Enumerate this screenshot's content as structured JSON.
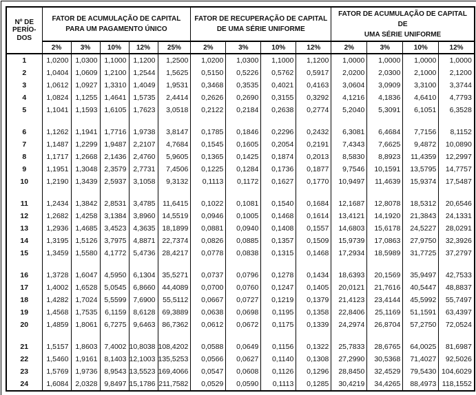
{
  "colors": {
    "border": "#000000",
    "text": "#111111",
    "background": "#ffffff"
  },
  "document": {
    "period_header": "Nº DE\nPERÍO-\nDOS",
    "band_size": 5,
    "groups": [
      {
        "title": "FATOR DE ACUMULAÇÃO DE CAPITAL\nPARA UM PAGAMENTO ÚNICO",
        "rates": [
          "2%",
          "3%",
          "10%",
          "12%",
          "25%"
        ]
      },
      {
        "title": "FATOR DE RECUPERAÇÃO DE CAPITAL\nDE UMA SÉRIE UNIFORME",
        "rates": [
          "2%",
          "3%",
          "10%",
          "12%"
        ]
      },
      {
        "title": "FATOR DE ACUMULAÇÃO DE CAPITAL DE\nUMA SÉRIE UNIFORME",
        "rates": [
          "2%",
          "3%",
          "10%",
          "12%"
        ]
      }
    ],
    "rows": [
      {
        "period": "1",
        "values": [
          [
            "1,0200",
            "1,0300",
            "1,1000",
            "1,1200",
            "1,2500"
          ],
          [
            "1,0200",
            "1,0300",
            "1,1000",
            "1,1200"
          ],
          [
            "1,0000",
            "1,0000",
            "1,0000",
            "1,0000"
          ]
        ]
      },
      {
        "period": "2",
        "values": [
          [
            "1,0404",
            "1,0609",
            "1,2100",
            "1,2544",
            "1,5625"
          ],
          [
            "0,5150",
            "0,5226",
            "0,5762",
            "0,5917"
          ],
          [
            "2,0200",
            "2,0300",
            "2,1000",
            "2,1200"
          ]
        ]
      },
      {
        "period": "3",
        "values": [
          [
            "1,0612",
            "1,0927",
            "1,3310",
            "1,4049",
            "1,9531"
          ],
          [
            "0,3468",
            "0,3535",
            "0,4021",
            "0,4163"
          ],
          [
            "3,0604",
            "3,0909",
            "3,3100",
            "3,3744"
          ]
        ]
      },
      {
        "period": "4",
        "values": [
          [
            "1,0824",
            "1,1255",
            "1,4641",
            "1,5735",
            "2,4414"
          ],
          [
            "0,2626",
            "0,2690",
            "0,3155",
            "0,3292"
          ],
          [
            "4,1216",
            "4,1836",
            "4,6410",
            "4,7793"
          ]
        ]
      },
      {
        "period": "5",
        "values": [
          [
            "1,1041",
            "1,1593",
            "1,6105",
            "1,7623",
            "3,0518"
          ],
          [
            "0,2122",
            "0,2184",
            "0,2638",
            "0,2774"
          ],
          [
            "5,2040",
            "5,3091",
            "6,1051",
            "6,3528"
          ]
        ]
      },
      {
        "period": "6",
        "values": [
          [
            "1,1262",
            "1,1941",
            "1,7716",
            "1,9738",
            "3,8147"
          ],
          [
            "0,1785",
            "0,1846",
            "0,2296",
            "0,2432"
          ],
          [
            "6,3081",
            "6,4684",
            "7,7156",
            "8,1152"
          ]
        ]
      },
      {
        "period": "7",
        "values": [
          [
            "1,1487",
            "1,2299",
            "1,9487",
            "2,2107",
            "4,7684"
          ],
          [
            "0,1545",
            "0,1605",
            "0,2054",
            "0,2191"
          ],
          [
            "7,4343",
            "7,6625",
            "9,4872",
            "10,0890"
          ]
        ]
      },
      {
        "period": "8",
        "values": [
          [
            "1,1717",
            "1,2668",
            "2,1436",
            "2,4760",
            "5,9605"
          ],
          [
            "0,1365",
            "0,1425",
            "0,1874",
            "0,2013"
          ],
          [
            "8,5830",
            "8,8923",
            "11,4359",
            "12,2997"
          ]
        ]
      },
      {
        "period": "9",
        "values": [
          [
            "1,1951",
            "1,3048",
            "2,3579",
            "2,7731",
            "7,4506"
          ],
          [
            "0,1225",
            "0,1284",
            "0,1736",
            "0,1877"
          ],
          [
            "9,7546",
            "10,1591",
            "13,5795",
            "14,7757"
          ]
        ]
      },
      {
        "period": "10",
        "values": [
          [
            "1,2190",
            "1,3439",
            "2,5937",
            "3,1058",
            "9,3132"
          ],
          [
            "0,1113",
            "0,1172",
            "0,1627",
            "0,1770"
          ],
          [
            "10,9497",
            "11,4639",
            "15,9374",
            "17,5487"
          ]
        ]
      },
      {
        "period": "11",
        "values": [
          [
            "1,2434",
            "1,3842",
            "2,8531",
            "3,4785",
            "11,6415"
          ],
          [
            "0,1022",
            "0,1081",
            "0,1540",
            "0,1684"
          ],
          [
            "12,1687",
            "12,8078",
            "18,5312",
            "20,6546"
          ]
        ]
      },
      {
        "period": "12",
        "values": [
          [
            "1,2682",
            "1,4258",
            "3,1384",
            "3,8960",
            "14,5519"
          ],
          [
            "0,0946",
            "0,1005",
            "0,1468",
            "0,1614"
          ],
          [
            "13,4121",
            "14,1920",
            "21,3843",
            "24,1331"
          ]
        ]
      },
      {
        "period": "13",
        "values": [
          [
            "1,2936",
            "1,4685",
            "3,4523",
            "4,3635",
            "18,1899"
          ],
          [
            "0,0881",
            "0,0940",
            "0,1408",
            "0,1557"
          ],
          [
            "14,6803",
            "15,6178",
            "24,5227",
            "28,0291"
          ]
        ]
      },
      {
        "period": "14",
        "values": [
          [
            "1,3195",
            "1,5126",
            "3,7975",
            "4,8871",
            "22,7374"
          ],
          [
            "0,0826",
            "0,0885",
            "0,1357",
            "0,1509"
          ],
          [
            "15,9739",
            "17,0863",
            "27,9750",
            "32,3926"
          ]
        ]
      },
      {
        "period": "15",
        "values": [
          [
            "1,3459",
            "1,5580",
            "4,1772",
            "5,4736",
            "28,4217"
          ],
          [
            "0,0778",
            "0,0838",
            "0,1315",
            "0,1468"
          ],
          [
            "17,2934",
            "18,5989",
            "31,7725",
            "37,2797"
          ]
        ]
      },
      {
        "period": "16",
        "values": [
          [
            "1,3728",
            "1,6047",
            "4,5950",
            "6,1304",
            "35,5271"
          ],
          [
            "0,0737",
            "0,0796",
            "0,1278",
            "0,1434"
          ],
          [
            "18,6393",
            "20,1569",
            "35,9497",
            "42,7533"
          ]
        ]
      },
      {
        "period": "17",
        "values": [
          [
            "1,4002",
            "1,6528",
            "5,0545",
            "6,8660",
            "44,4089"
          ],
          [
            "0,0700",
            "0,0760",
            "0,1247",
            "0,1405"
          ],
          [
            "20,0121",
            "21,7616",
            "40,5447",
            "48,8837"
          ]
        ]
      },
      {
        "period": "18",
        "values": [
          [
            "1,4282",
            "1,7024",
            "5,5599",
            "7,6900",
            "55,5112"
          ],
          [
            "0,0667",
            "0,0727",
            "0,1219",
            "0,1379"
          ],
          [
            "21,4123",
            "23,4144",
            "45,5992",
            "55,7497"
          ]
        ]
      },
      {
        "period": "19",
        "values": [
          [
            "1,4568",
            "1,7535",
            "6,1159",
            "8,6128",
            "69,3889"
          ],
          [
            "0,0638",
            "0,0698",
            "0,1195",
            "0,1358"
          ],
          [
            "22,8406",
            "25,1169",
            "51,1591",
            "63,4397"
          ]
        ]
      },
      {
        "period": "20",
        "values": [
          [
            "1,4859",
            "1,8061",
            "6,7275",
            "9,6463",
            "86,7362"
          ],
          [
            "0,0612",
            "0,0672",
            "0,1175",
            "0,1339"
          ],
          [
            "24,2974",
            "26,8704",
            "57,2750",
            "72,0524"
          ]
        ]
      },
      {
        "period": "21",
        "values": [
          [
            "1,5157",
            "1,8603",
            "7,4002",
            "10,8038",
            "108,4202"
          ],
          [
            "0,0588",
            "0,0649",
            "0,1156",
            "0,1322"
          ],
          [
            "25,7833",
            "28,6765",
            "64,0025",
            "81,6987"
          ]
        ]
      },
      {
        "period": "22",
        "values": [
          [
            "1,5460",
            "1,9161",
            "8,1403",
            "12,1003",
            "135,5253"
          ],
          [
            "0,0566",
            "0,0627",
            "0,1140",
            "0,1308"
          ],
          [
            "27,2990",
            "30,5368",
            "71,4027",
            "92,5026"
          ]
        ]
      },
      {
        "period": "23",
        "values": [
          [
            "1,5769",
            "1,9736",
            "8,9543",
            "13,5523",
            "169,4066"
          ],
          [
            "0,0547",
            "0,0608",
            "0,1126",
            "0,1296"
          ],
          [
            "28,8450",
            "32,4529",
            "79,5430",
            "104,6029"
          ]
        ]
      },
      {
        "period": "24",
        "values": [
          [
            "1,6084",
            "2,0328",
            "9,8497",
            "15,1786",
            "211,7582"
          ],
          [
            "0,0529",
            "0,0590",
            "0,1113",
            "0,1285"
          ],
          [
            "30,4219",
            "34,4265",
            "88,4973",
            "118,1552"
          ]
        ]
      }
    ]
  }
}
